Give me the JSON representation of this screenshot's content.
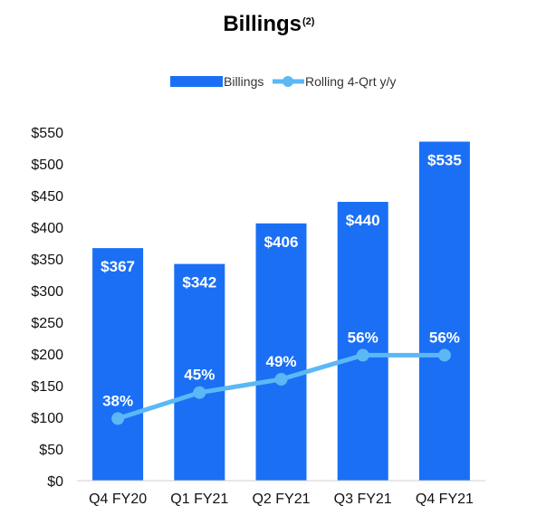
{
  "chart_data": {
    "type": "bar",
    "title": "Billings",
    "title_superscript": "(2)",
    "categories": [
      "Q4 FY20",
      "Q1 FY21",
      "Q2 FY21",
      "Q3 FY21",
      "Q4 FY21"
    ],
    "series": [
      {
        "name": "Billings",
        "kind": "bar",
        "values": [
          367,
          342,
          406,
          440,
          535
        ],
        "labels": [
          "$367",
          "$342",
          "$406",
          "$440",
          "$535"
        ],
        "color": "#1a6ff5"
      },
      {
        "name": "Rolling 4-Qrt y/y",
        "kind": "line",
        "values": [
          38,
          45,
          49,
          56,
          56
        ],
        "labels": [
          "38%",
          "45%",
          "49%",
          "56%",
          "56%"
        ],
        "plotted_on_left_axis_at": [
          98,
          139,
          160,
          198,
          198
        ],
        "color": "#5bb8f5"
      }
    ],
    "ylim": [
      0,
      550
    ],
    "yticks": [
      0,
      50,
      100,
      150,
      200,
      250,
      300,
      350,
      400,
      450,
      500,
      550
    ],
    "ytick_labels": [
      "$0",
      "$50",
      "$100",
      "$150",
      "$200",
      "$250",
      "$300",
      "$350",
      "$400",
      "$450",
      "$500",
      "$550"
    ],
    "xlabel": "",
    "ylabel": "",
    "grid": false,
    "legend": "top-center"
  }
}
